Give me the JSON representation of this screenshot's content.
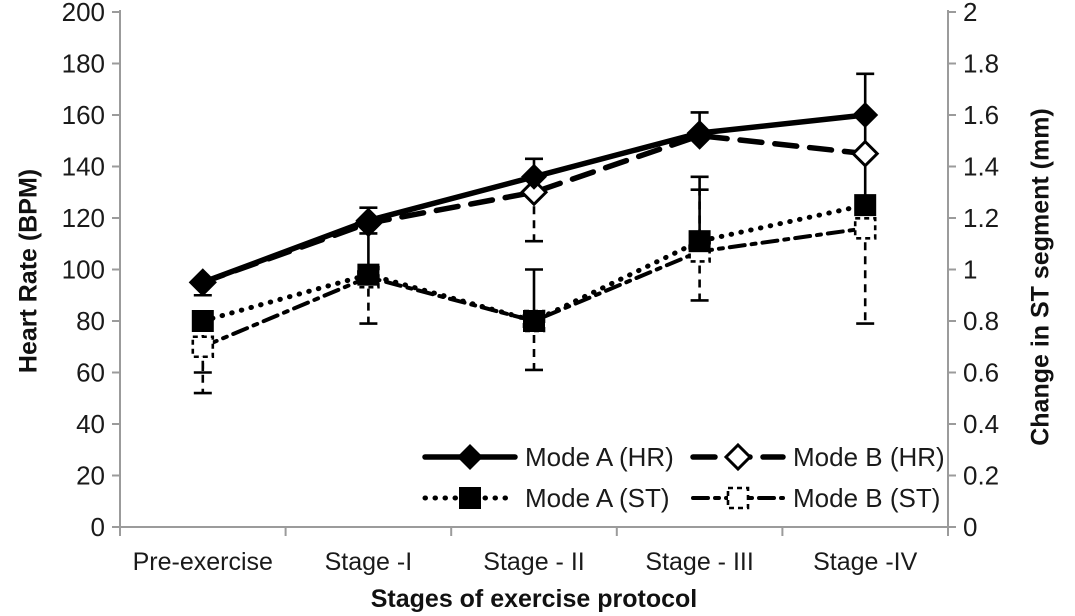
{
  "chart_data": {
    "type": "line",
    "title": "",
    "xlabel": "Stages of exercise protocol",
    "ylabel_left": "Heart Rate (BPM)",
    "ylabel_right": "Change in ST segment (mm)",
    "x_categories": [
      "Pre-exercise",
      "Stage -I",
      "Stage - II",
      "Stage - III",
      "Stage -IV"
    ],
    "y_left": {
      "min": 0,
      "max": 200,
      "step": 20
    },
    "y_right": {
      "min": 0,
      "max": 2,
      "step": 0.2
    },
    "grid": false,
    "legend_position": "inside-bottom-center",
    "series": [
      {
        "name": "Mode A (HR)",
        "axis": "left",
        "line": "solid",
        "marker": "diamond-filled",
        "values": [
          95,
          119,
          136,
          153,
          160
        ],
        "err_plus": [
          0,
          5,
          7,
          8,
          16
        ],
        "err_minus": [
          5,
          0,
          0,
          0,
          15
        ],
        "err_plus_style": "solid",
        "err_minus_style": "solid"
      },
      {
        "name": "Mode B (HR)",
        "axis": "left",
        "line": "dashed",
        "marker": "diamond-open",
        "values": [
          95,
          118,
          130,
          152,
          145
        ],
        "err_plus": [
          0,
          0,
          0,
          0,
          0
        ],
        "err_minus": [
          0,
          0,
          19,
          0,
          0
        ],
        "err_plus_style": "dashed",
        "err_minus_style": "dashed"
      },
      {
        "name": "Mode A (ST)",
        "axis": "right",
        "line": "dotted",
        "marker": "square-filled",
        "values": [
          0.8,
          0.98,
          0.8,
          1.11,
          1.25
        ],
        "err_plus": [
          0,
          0.16,
          0.2,
          0.25,
          0.2
        ],
        "err_minus": [
          0.2,
          0.19,
          0,
          0,
          0
        ],
        "err_plus_style": "solid",
        "err_minus_style": "dashed"
      },
      {
        "name": "Mode B (ST)",
        "axis": "right",
        "line": "dashdot",
        "marker": "square-open-dashed",
        "values": [
          0.7,
          0.97,
          0.8,
          1.07,
          1.16
        ],
        "err_plus": [
          0,
          0,
          0,
          0.24,
          0
        ],
        "err_minus": [
          0.18,
          0,
          0.19,
          0.19,
          0.37
        ],
        "err_plus_style": "dashed",
        "err_minus_style": "dashed"
      }
    ],
    "colors": {
      "ink": "#000000",
      "axis_line": "#9b9b9b",
      "text": "#1a1a1a",
      "background": "#ffffff"
    }
  }
}
